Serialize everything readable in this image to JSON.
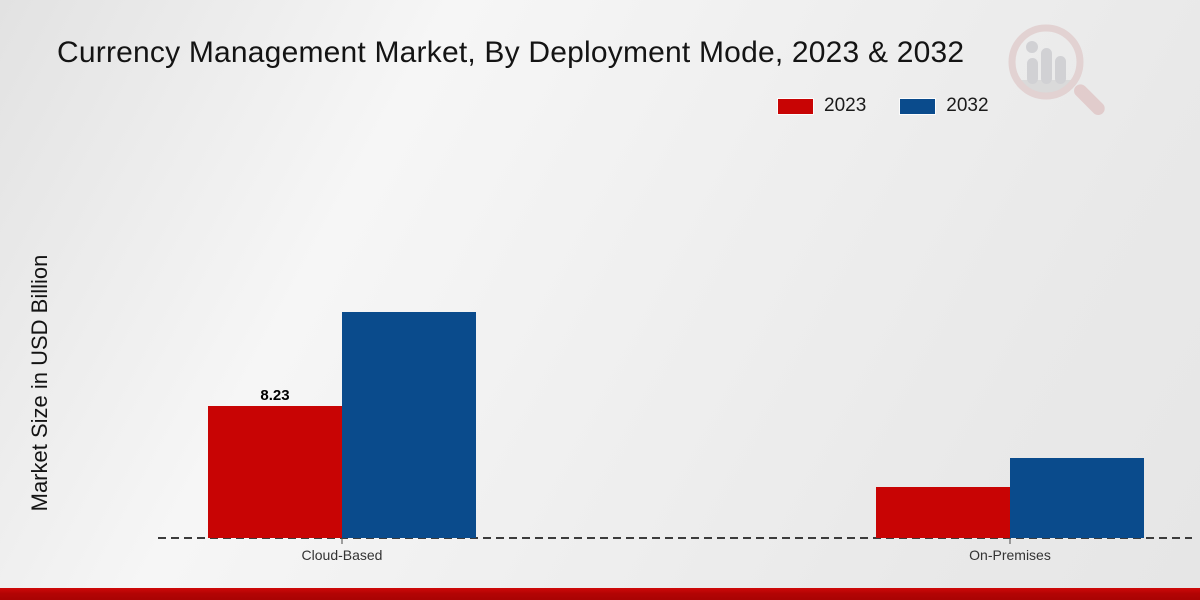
{
  "chart_data": {
    "type": "bar",
    "title": "Currency Management Market, By Deployment Mode, 2023 & 2032",
    "ylabel": "Market Size in USD Billion",
    "xlabel": "",
    "categories": [
      "Cloud-Based",
      "On-Premises"
    ],
    "series": [
      {
        "name": "2023",
        "color": "#c80404",
        "values": [
          8.23,
          3.2
        ],
        "labels": [
          "8.23",
          ""
        ]
      },
      {
        "name": "2032",
        "color": "#0a4b8c",
        "values": [
          14.1,
          5.0
        ],
        "labels": [
          "",
          ""
        ]
      }
    ],
    "ylim": [
      0,
      15
    ],
    "grid": false,
    "legend_position": "top-right",
    "baseline_style": "dashed",
    "y_axis_ticks_visible": false
  },
  "watermark": {
    "icon": "magnifier-bar-chart-logo"
  },
  "footer": {
    "accent_color": "#b30505"
  }
}
